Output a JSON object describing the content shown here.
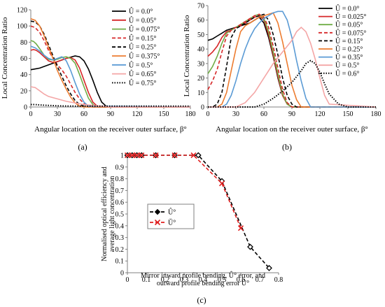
{
  "chart_data": [
    {
      "panel": "(a)",
      "type": "line",
      "ylabel": "Local Concentration Ratio",
      "xlabel": "Angular location on the receiver outer surface, β°",
      "xlim": [
        0,
        180
      ],
      "ylim": [
        0,
        120
      ],
      "xticks": [
        "0",
        "30",
        "60",
        "90",
        "120",
        "150",
        "180"
      ],
      "yticks": [
        "0",
        "20",
        "40",
        "60",
        "80",
        "100",
        "120"
      ],
      "legend_position": "right",
      "series": [
        {
          "name": "Û = 0.0°",
          "color": "#000000",
          "dash": "solid",
          "x": [
            0,
            5,
            10,
            20,
            30,
            40,
            50,
            55,
            60,
            65,
            70,
            75,
            80,
            85,
            90,
            180
          ],
          "y": [
            46,
            47,
            48,
            52,
            56,
            60,
            63,
            62,
            57,
            47,
            33,
            18,
            6,
            1,
            0,
            0
          ]
        },
        {
          "name": "Û = 0.05°",
          "color": "#d62728",
          "dash": "solid",
          "x": [
            0,
            3,
            6,
            10,
            15,
            20,
            25,
            30,
            35,
            40,
            45,
            50,
            55,
            60,
            65,
            70,
            75,
            80,
            180
          ],
          "y": [
            70,
            71,
            70,
            67,
            62,
            57,
            55,
            56,
            58,
            60,
            61,
            58,
            48,
            33,
            18,
            6,
            1,
            0,
            0
          ]
        },
        {
          "name": "Û = 0.075°",
          "color": "#70ad47",
          "dash": "solid",
          "x": [
            0,
            3,
            6,
            10,
            15,
            20,
            25,
            30,
            35,
            40,
            45,
            50,
            55,
            60,
            65,
            70,
            75,
            180
          ],
          "y": [
            82,
            81,
            78,
            72,
            64,
            59,
            58,
            59,
            61,
            62,
            60,
            54,
            40,
            25,
            11,
            3,
            0,
            0
          ]
        },
        {
          "name": "Û = 0.15°",
          "color": "#d62728",
          "dash": "dashed",
          "x": [
            0,
            5,
            10,
            15,
            20,
            25,
            30,
            35,
            40,
            45,
            50,
            55,
            60,
            65,
            70,
            180
          ],
          "y": [
            100,
            98,
            92,
            82,
            70,
            60,
            52,
            46,
            38,
            28,
            18,
            10,
            4,
            1,
            0,
            0
          ]
        },
        {
          "name": "Û = 0.25°",
          "color": "#000000",
          "dash": "dashed",
          "x": [
            0,
            5,
            10,
            15,
            20,
            25,
            30,
            35,
            40,
            45,
            50,
            55,
            60,
            65,
            180
          ],
          "y": [
            106,
            105,
            100,
            90,
            77,
            63,
            50,
            38,
            26,
            16,
            8,
            3,
            1,
            0,
            0
          ]
        },
        {
          "name": "Û = 0.375°",
          "color": "#ed7d31",
          "dash": "solid",
          "x": [
            0,
            5,
            10,
            15,
            20,
            25,
            30,
            35,
            40,
            45,
            50,
            55,
            60,
            180
          ],
          "y": [
            109,
            107,
            100,
            88,
            74,
            60,
            45,
            33,
            22,
            12,
            5,
            1,
            0,
            0
          ]
        },
        {
          "name": "Û = 0.5°",
          "color": "#5b9bd5",
          "dash": "solid",
          "x": [
            0,
            5,
            10,
            15,
            20,
            25,
            30,
            35,
            40,
            45,
            50,
            55,
            60,
            65,
            180
          ],
          "y": [
            75,
            73,
            69,
            64,
            60,
            58,
            60,
            62,
            57,
            45,
            30,
            16,
            6,
            1,
            0
          ]
        },
        {
          "name": "Û = 0.65°",
          "color": "#f4a6a6",
          "dash": "solid",
          "x": [
            0,
            5,
            10,
            15,
            20,
            30,
            40,
            50,
            60,
            70,
            80,
            90,
            180
          ],
          "y": [
            25,
            24,
            20,
            16,
            13,
            10,
            7,
            5,
            3,
            2,
            1,
            0,
            0
          ]
        },
        {
          "name": "Û = 0.75°",
          "color": "#000000",
          "dash": "dotted",
          "x": [
            0,
            5,
            10,
            20,
            30,
            40,
            60,
            80,
            100,
            120,
            150,
            180
          ],
          "y": [
            3,
            3,
            2.5,
            2,
            1.5,
            1.2,
            1,
            1,
            1,
            1,
            1,
            1
          ]
        }
      ]
    },
    {
      "panel": "(b)",
      "type": "line",
      "ylabel": "Local Concentration Ratio",
      "xlabel": "Angular location on the receiver outer surface, β°",
      "xlim": [
        0,
        180
      ],
      "ylim": [
        0,
        70
      ],
      "xticks": [
        "0",
        "30",
        "60",
        "90",
        "120",
        "150",
        "180"
      ],
      "yticks": [
        "0",
        "10",
        "20",
        "30",
        "40",
        "50",
        "60",
        "70"
      ],
      "legend_position": "right",
      "series": [
        {
          "name": "Û = 0.0°",
          "color": "#000000",
          "dash": "solid",
          "x": [
            0,
            5,
            10,
            15,
            20,
            25,
            30,
            35,
            40,
            45,
            50,
            55,
            60,
            65,
            70,
            75,
            80,
            85,
            90,
            180
          ],
          "y": [
            46,
            47,
            49,
            51,
            53,
            54,
            55,
            56,
            57,
            58,
            60,
            62,
            58,
            48,
            35,
            20,
            8,
            2,
            0,
            0
          ]
        },
        {
          "name": "Û = 0.025°",
          "color": "#d62728",
          "dash": "solid",
          "x": [
            0,
            5,
            10,
            15,
            20,
            25,
            30,
            35,
            40,
            45,
            50,
            55,
            60,
            65,
            70,
            75,
            80,
            85,
            90,
            180
          ],
          "y": [
            35,
            38,
            42,
            48,
            52,
            53,
            55,
            56,
            58,
            60,
            62,
            63,
            60,
            50,
            36,
            21,
            8,
            2,
            0,
            0
          ]
        },
        {
          "name": "Û = 0.05°",
          "color": "#70ad47",
          "dash": "solid",
          "x": [
            0,
            5,
            10,
            15,
            20,
            25,
            30,
            35,
            40,
            45,
            50,
            55,
            60,
            65,
            70,
            75,
            80,
            85,
            90,
            180
          ],
          "y": [
            23,
            28,
            35,
            44,
            51,
            53,
            55,
            57,
            59,
            61,
            63,
            64,
            61,
            52,
            38,
            23,
            9,
            2,
            0,
            0
          ]
        },
        {
          "name": "Û = 0.075°",
          "color": "#d62728",
          "dash": "dashed",
          "x": [
            0,
            5,
            10,
            15,
            20,
            25,
            30,
            35,
            40,
            45,
            50,
            55,
            60,
            65,
            70,
            75,
            80,
            85,
            90,
            180
          ],
          "y": [
            12,
            18,
            26,
            38,
            49,
            53,
            55,
            57,
            59,
            61,
            63,
            64,
            62,
            55,
            42,
            27,
            12,
            3,
            0,
            0
          ]
        },
        {
          "name": "Û = 0.15°",
          "color": "#000000",
          "dash": "dashed",
          "x": [
            0,
            5,
            10,
            15,
            20,
            25,
            30,
            35,
            40,
            45,
            50,
            55,
            60,
            65,
            70,
            75,
            80,
            85,
            90,
            95,
            180
          ],
          "y": [
            0,
            0,
            2,
            10,
            28,
            48,
            54,
            56,
            58,
            60,
            62,
            63,
            64,
            60,
            50,
            36,
            20,
            8,
            2,
            0,
            0
          ]
        },
        {
          "name": "Û = 0.25°",
          "color": "#ed7d31",
          "dash": "solid",
          "x": [
            0,
            10,
            15,
            20,
            25,
            30,
            35,
            40,
            45,
            50,
            55,
            60,
            65,
            70,
            75,
            80,
            85,
            90,
            95,
            100,
            180
          ],
          "y": [
            0,
            0,
            2,
            10,
            25,
            40,
            52,
            56,
            58,
            60,
            62,
            63,
            64,
            65,
            58,
            45,
            30,
            15,
            5,
            0,
            0
          ]
        },
        {
          "name": "Û = 0.35°",
          "color": "#5b9bd5",
          "dash": "solid",
          "x": [
            0,
            15,
            20,
            25,
            30,
            35,
            40,
            45,
            50,
            55,
            60,
            65,
            70,
            75,
            80,
            85,
            90,
            95,
            100,
            105,
            110,
            180
          ],
          "y": [
            0,
            0,
            2,
            8,
            18,
            30,
            40,
            48,
            54,
            58,
            61,
            63,
            65,
            66,
            66,
            60,
            48,
            32,
            18,
            6,
            0,
            0
          ]
        },
        {
          "name": "Û = 0.5°",
          "color": "#f4a6a6",
          "dash": "solid",
          "x": [
            0,
            30,
            40,
            50,
            60,
            70,
            80,
            90,
            95,
            100,
            105,
            110,
            115,
            120,
            125,
            130,
            180
          ],
          "y": [
            0,
            0,
            3,
            10,
            20,
            30,
            38,
            46,
            52,
            55,
            52,
            44,
            33,
            20,
            8,
            2,
            0
          ]
        },
        {
          "name": "Û = 0.6°",
          "color": "#000000",
          "dash": "dotted",
          "x": [
            0,
            50,
            60,
            70,
            80,
            90,
            100,
            105,
            110,
            115,
            120,
            125,
            130,
            140,
            150,
            180
          ],
          "y": [
            0,
            0,
            2,
            6,
            11,
            17,
            25,
            30,
            32,
            30,
            24,
            16,
            9,
            2,
            0,
            0
          ]
        }
      ]
    },
    {
      "panel": "(c)",
      "type": "line",
      "ylabel": "Normalised optical efficiency and average light concentration",
      "xlabel": "Mirror inward profile bending, Û° error, and outward profile bending error Ŭ°",
      "xlim": [
        0,
        0.8
      ],
      "ylim": [
        0,
        1
      ],
      "xticks": [
        "0",
        "0.1",
        "0.2",
        "0.3",
        "0.4",
        "0.5",
        "0.6",
        "0.7",
        "0.8"
      ],
      "yticks": [
        "0",
        "0.1",
        "0.2",
        "0.3",
        "0.4",
        "0.5",
        "0.6",
        "0.7",
        "0.8",
        "0.9",
        "1"
      ],
      "legend_position": "left-middle",
      "series": [
        {
          "name": "Û°",
          "color": "#000000",
          "marker": "diamond",
          "dash": "dashed",
          "x": [
            0,
            0.025,
            0.05,
            0.075,
            0.15,
            0.25,
            0.375,
            0.5,
            0.65,
            0.75
          ],
          "y": [
            1,
            1,
            1,
            1,
            1,
            1,
            1,
            0.78,
            0.22,
            0.04
          ]
        },
        {
          "name": "Ŭ°",
          "color": "#e02020",
          "marker": "x",
          "dash": "dashed",
          "x": [
            0,
            0.025,
            0.05,
            0.075,
            0.15,
            0.25,
            0.35,
            0.5,
            0.6
          ],
          "y": [
            1,
            1,
            1,
            1,
            1,
            1,
            1,
            0.76,
            0.38
          ]
        }
      ]
    }
  ],
  "labels": {
    "a": "(a)",
    "b": "(b)",
    "c": "(c)"
  }
}
